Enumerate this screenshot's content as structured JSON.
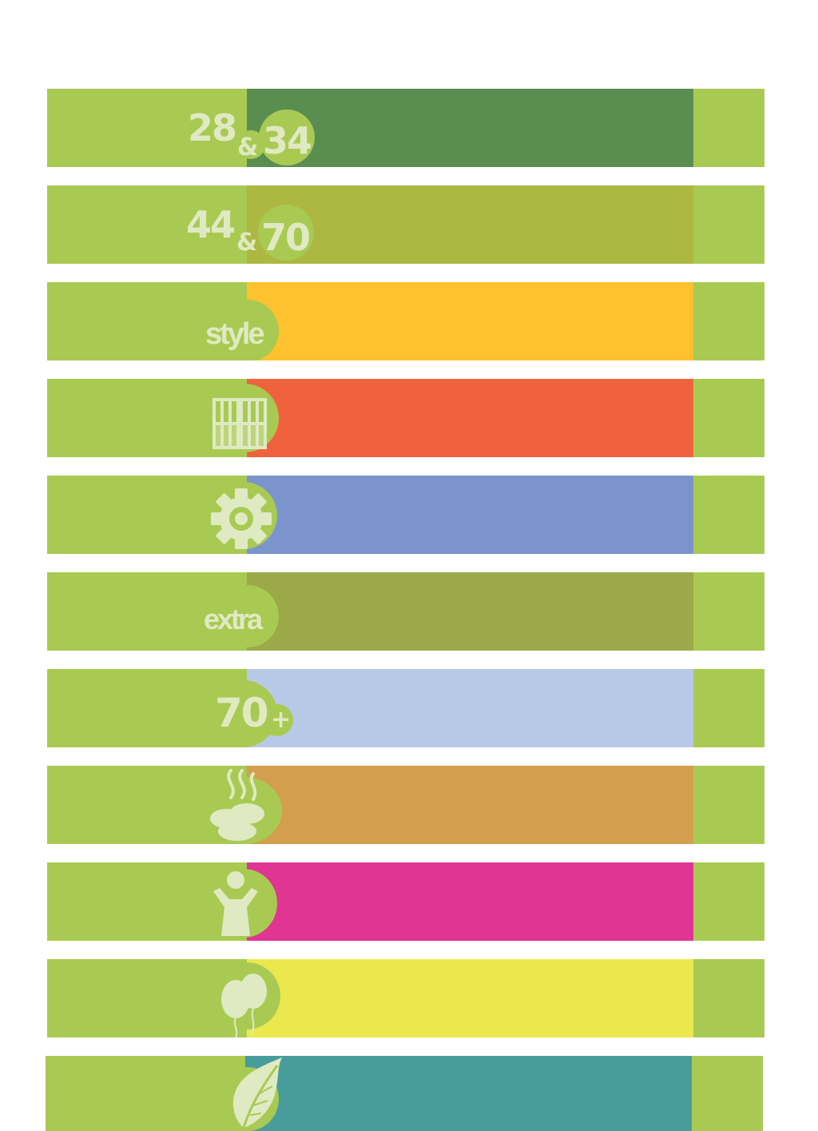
{
  "colors": {
    "row_background": "#a9ca52",
    "glyph": "#dfeac3",
    "page_background": "#ffffff"
  },
  "rows": [
    {
      "color": "#5a8e50",
      "numbers": [
        "28",
        "&",
        "34"
      ]
    },
    {
      "color": "#adb842",
      "numbers": [
        "44",
        "&",
        "70"
      ]
    },
    {
      "color": "#fdc22e",
      "text": "style"
    },
    {
      "color": "#f0623d",
      "icon": "bookshelf-icon"
    },
    {
      "color": "#7b94cb",
      "icon": "gear-icon"
    },
    {
      "color": "#9ba948",
      "text": "extra"
    },
    {
      "color": "#b8c9e7",
      "numbers": [
        "70",
        "+"
      ]
    },
    {
      "color": "#d39f4f",
      "icon": "steaming-food-icon"
    },
    {
      "color": "#e03592",
      "icon": "cheering-person-icon"
    },
    {
      "color": "#ebe84d",
      "icon": "balloons-icon"
    },
    {
      "color": "#489d9b",
      "icon": "leaf-icon"
    }
  ]
}
